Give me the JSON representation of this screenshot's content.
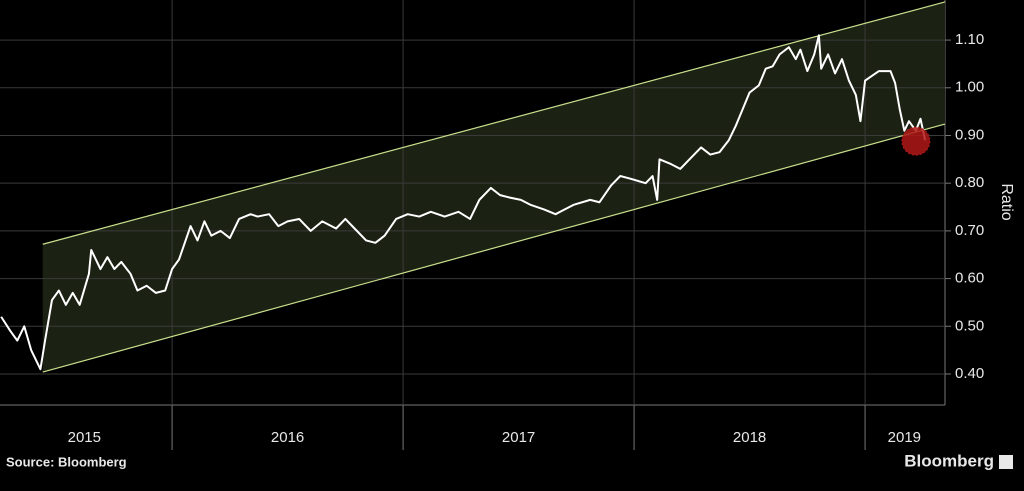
{
  "chart_data": {
    "type": "line",
    "y_label": "Ratio",
    "source": "Source: Bloomberg",
    "brand": "Bloomberg",
    "xlim": [
      2015.255,
      2019.346
    ],
    "ylim": [
      0.335,
      1.184
    ],
    "xticks": [
      2016,
      2017,
      2018,
      2019
    ],
    "x_labels": [
      {
        "value": 2015.62,
        "label": "2015"
      },
      {
        "value": 2016.5,
        "label": "2016"
      },
      {
        "value": 2017.5,
        "label": "2017"
      },
      {
        "value": 2018.5,
        "label": "2018"
      },
      {
        "value": 2019.17,
        "label": "2019"
      }
    ],
    "yticks": [
      {
        "value": 0.4,
        "label": "0.40"
      },
      {
        "value": 0.5,
        "label": "0.50"
      },
      {
        "value": 0.6,
        "label": "0.60"
      },
      {
        "value": 0.7,
        "label": "0.70"
      },
      {
        "value": 0.8,
        "label": "0.80"
      },
      {
        "value": 0.9,
        "label": "0.90"
      },
      {
        "value": 1.0,
        "label": "1.00"
      },
      {
        "value": 1.1,
        "label": "1.10"
      }
    ],
    "grid": true,
    "channel": {
      "x": [
        2015.44,
        2019.346
      ],
      "upper": [
        0.672,
        1.18
      ],
      "lower": [
        0.404,
        0.924
      ],
      "fill": "#1b2213",
      "color": "#c9e08c"
    },
    "highlight": {
      "x": 2019.22,
      "y": 0.888,
      "color": "#b01818"
    },
    "series": [
      {
        "color": "#ffffff",
        "x": [
          2015.26,
          2015.3,
          2015.33,
          2015.36,
          2015.39,
          2015.43,
          2015.45,
          2015.48,
          2015.51,
          2015.54,
          2015.57,
          2015.6,
          2015.64,
          2015.65,
          2015.69,
          2015.72,
          2015.75,
          2015.78,
          2015.82,
          2015.85,
          2015.89,
          2015.93,
          2015.97,
          2016.0,
          2016.03,
          2016.08,
          2016.11,
          2016.14,
          2016.17,
          2016.21,
          2016.25,
          2016.29,
          2016.34,
          2016.37,
          2016.42,
          2016.46,
          2016.5,
          2016.55,
          2016.6,
          2016.65,
          2016.71,
          2016.75,
          2016.79,
          2016.84,
          2016.88,
          2016.92,
          2016.97,
          2017.02,
          2017.07,
          2017.12,
          2017.18,
          2017.24,
          2017.29,
          2017.33,
          2017.38,
          2017.42,
          2017.46,
          2017.51,
          2017.55,
          2017.61,
          2017.66,
          2017.7,
          2017.74,
          2017.81,
          2017.85,
          2017.9,
          2017.94,
          2017.98,
          2018.05,
          2018.08,
          2018.1,
          2018.11,
          2018.16,
          2018.2,
          2018.24,
          2018.29,
          2018.33,
          2018.37,
          2018.41,
          2018.44,
          2018.47,
          2018.5,
          2018.54,
          2018.57,
          2018.6,
          2018.63,
          2018.67,
          2018.7,
          2018.72,
          2018.75,
          2018.78,
          2018.8,
          2018.81,
          2018.84,
          2018.87,
          2018.9,
          2018.93,
          2018.96,
          2018.98,
          2019.0,
          2019.03,
          2019.06,
          2019.11,
          2019.13,
          2019.15,
          2019.17,
          2019.19,
          2019.22,
          2019.24,
          2019.26
        ],
        "values": [
          0.52,
          0.49,
          0.47,
          0.5,
          0.45,
          0.41,
          0.47,
          0.555,
          0.575,
          0.545,
          0.57,
          0.545,
          0.61,
          0.66,
          0.62,
          0.645,
          0.62,
          0.635,
          0.61,
          0.575,
          0.585,
          0.57,
          0.575,
          0.62,
          0.64,
          0.71,
          0.68,
          0.72,
          0.69,
          0.7,
          0.685,
          0.725,
          0.735,
          0.73,
          0.735,
          0.71,
          0.72,
          0.725,
          0.7,
          0.72,
          0.705,
          0.725,
          0.705,
          0.68,
          0.675,
          0.69,
          0.725,
          0.735,
          0.73,
          0.74,
          0.73,
          0.74,
          0.725,
          0.765,
          0.79,
          0.775,
          0.77,
          0.765,
          0.755,
          0.745,
          0.735,
          0.745,
          0.755,
          0.765,
          0.76,
          0.795,
          0.815,
          0.81,
          0.8,
          0.815,
          0.765,
          0.85,
          0.84,
          0.83,
          0.85,
          0.875,
          0.86,
          0.865,
          0.89,
          0.92,
          0.955,
          0.99,
          1.005,
          1.04,
          1.045,
          1.07,
          1.085,
          1.06,
          1.08,
          1.035,
          1.07,
          1.11,
          1.04,
          1.07,
          1.03,
          1.06,
          1.015,
          0.985,
          0.93,
          1.015,
          1.025,
          1.035,
          1.035,
          1.01,
          0.955,
          0.91,
          0.93,
          0.91,
          0.935,
          0.89
        ]
      }
    ]
  }
}
